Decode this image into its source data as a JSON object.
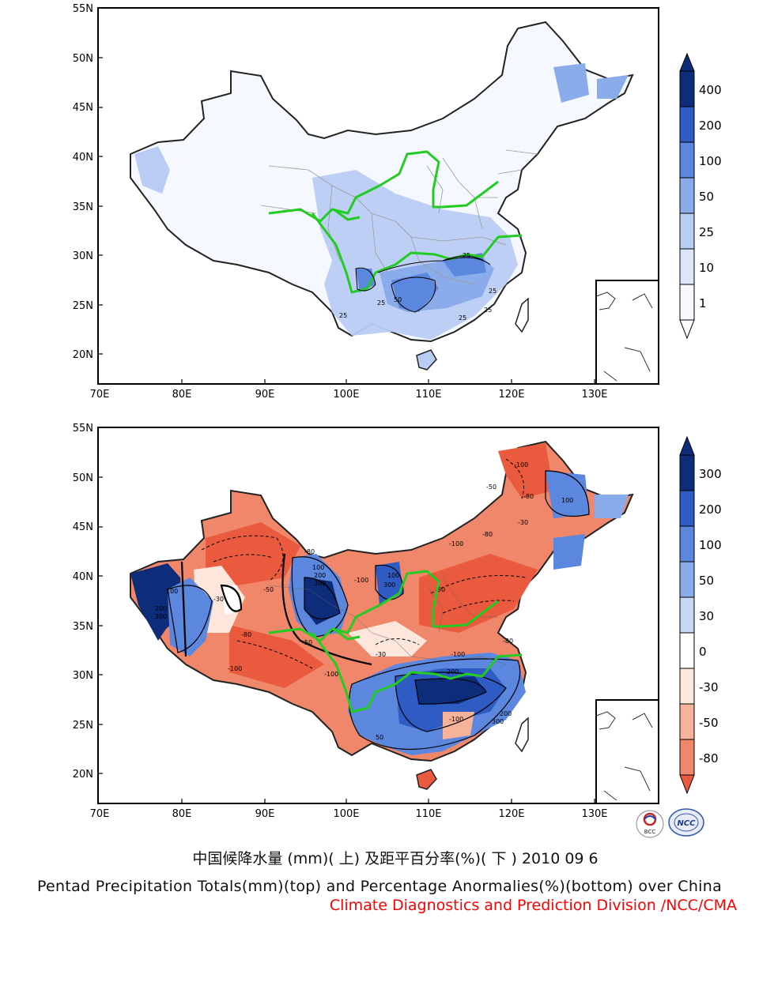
{
  "maps": [
    {
      "panel": "top",
      "lat_ticks": [
        "55N",
        "50N",
        "45N",
        "40N",
        "35N",
        "30N",
        "25N",
        "20N"
      ],
      "lon_ticks": [
        "70E",
        "80E",
        "90E",
        "100E",
        "110E",
        "120E",
        "130E"
      ],
      "contour_labels": [
        "25",
        "25",
        "25",
        "50",
        "25",
        "25",
        "25"
      ],
      "legend_levels": [
        "400",
        "200",
        "100",
        "50",
        "25",
        "10",
        "1"
      ],
      "palette": [
        "#f7f9ff",
        "#dbe6fb",
        "#b9ccf3",
        "#8bacea",
        "#5b87de",
        "#2f5cc4",
        "#0d2c7a"
      ]
    },
    {
      "panel": "bottom",
      "lat_ticks": [
        "55N",
        "50N",
        "45N",
        "40N",
        "35N",
        "30N",
        "25N",
        "20N"
      ],
      "lon_ticks": [
        "70E",
        "80E",
        "90E",
        "100E",
        "110E",
        "120E",
        "130E"
      ],
      "contour_labels": [
        "-100",
        "-80",
        "-50",
        "100",
        "-30",
        "-80",
        "-100",
        "300",
        "200",
        "100",
        "-50",
        "-100",
        "-80",
        "-100",
        "300",
        "200",
        "100",
        "-30",
        "-80",
        "-100",
        "-50",
        "300",
        "200",
        "100",
        "-100",
        "-80",
        "-30",
        "50",
        "200",
        "300",
        "-50",
        "-100"
      ],
      "legend_levels": [
        "300",
        "200",
        "100",
        "50",
        "30",
        "0",
        "-30",
        "-50",
        "-80"
      ],
      "palette_pos": [
        "#0d2c7a",
        "#2f5cc4",
        "#5b87de",
        "#8bacea",
        "#c6d6f5",
        "#ffffff"
      ],
      "palette_neg": [
        "#fde6dc",
        "#f7b29a",
        "#f1876a",
        "#ea5a3e"
      ]
    }
  ],
  "caption": {
    "chinese": "中国候降水量 (mm)( 上) 及距平百分率(%)( 下 ) 2010 09 6",
    "english": "Pentad Precipitation Totals(mm)(top) and Percentage Anormalies(%)(bottom) over China",
    "credit": "Climate Diagnostics and Prediction Division /NCC/CMA"
  },
  "logos": [
    {
      "name": "bcc-logo",
      "text": "BCC"
    },
    {
      "name": "ncc-logo",
      "text": "NCC"
    }
  ],
  "colors": {
    "river": "#22cc22",
    "border": "#222222",
    "credit": "#ff0000"
  }
}
